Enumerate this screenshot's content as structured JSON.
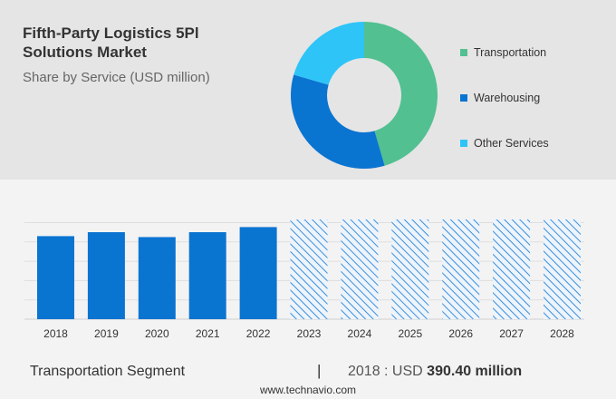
{
  "title": "Fifth-Party Logistics 5Pl Solutions Market",
  "subtitle": "Share by Service (USD million)",
  "footer": {
    "segment": "Transportation Segment",
    "separator": "|",
    "year_label": "2018 : USD",
    "value": "390.40 million",
    "url": "www.technavio.com"
  },
  "chart_data": [
    {
      "type": "pie",
      "style": "donut",
      "labels": [
        "Transportation",
        "Warehousing",
        "Other Services"
      ],
      "values": [
        45.5,
        34,
        20.5
      ],
      "colors": [
        "#52c091",
        "#0a74d1",
        "#2ec4f7"
      ],
      "legend": "right"
    },
    {
      "type": "bar",
      "categories": [
        "2018",
        "2019",
        "2020",
        "2021",
        "2022",
        "2023",
        "2024",
        "2025",
        "2026",
        "2027",
        "2028"
      ],
      "values": [
        390.4,
        409,
        386,
        409,
        433,
        null,
        null,
        null,
        null,
        null,
        null
      ],
      "forecast": [
        false,
        false,
        false,
        false,
        false,
        true,
        true,
        true,
        true,
        true,
        true
      ],
      "ylim": [
        0,
        520
      ],
      "grid": true,
      "colors": {
        "actual": "#0a74d1",
        "forecast_hatch": "#3a8fdc"
      }
    }
  ]
}
